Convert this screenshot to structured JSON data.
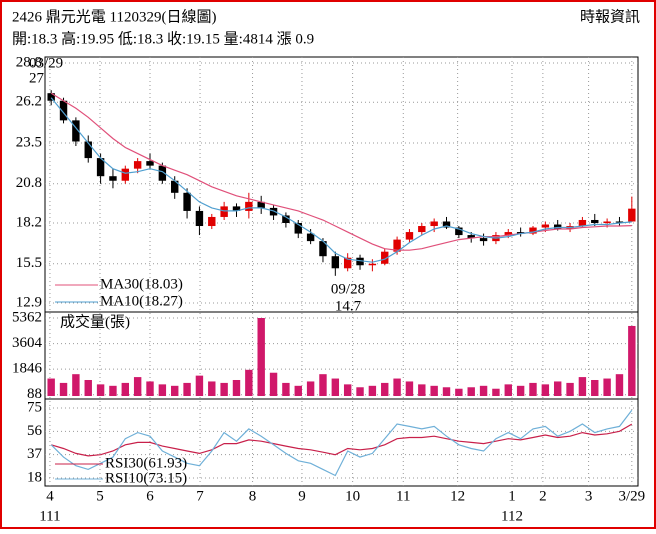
{
  "chart_data": {
    "type": "candlestick",
    "title": "2426  鼎元光電 1120329(日線圖)",
    "source": "時報資訊",
    "quote": "開:18.3 高:19.95 低:18.3 收:19.15 量:4814 漲 0.9",
    "up_color": "#e00000",
    "down_color": "#000000",
    "xlim": [
      -0.5,
      47.5
    ],
    "xticks": [
      {
        "value": -0.1,
        "label": "4"
      },
      {
        "value": 3.95,
        "label": "5"
      },
      {
        "value": 8,
        "label": "6"
      },
      {
        "value": 12.05,
        "label": "7"
      },
      {
        "value": 16.3,
        "label": "8"
      },
      {
        "value": 20.3,
        "label": "9"
      },
      {
        "value": 24.4,
        "label": "10"
      },
      {
        "value": 28.5,
        "label": "11"
      },
      {
        "value": 32.9,
        "label": "12"
      },
      {
        "value": 37.3,
        "label": "1"
      },
      {
        "value": 39.8,
        "label": "2"
      },
      {
        "value": 43.5,
        "label": "3"
      },
      {
        "value": 47,
        "label": "3/29"
      }
    ],
    "year_labels": [
      {
        "value": -0.1,
        "label": "111"
      },
      {
        "value": 37.3,
        "label": "112"
      }
    ],
    "grid": true,
    "ylim": [
      12.9,
      28.8
    ],
    "yticks": [
      28.8,
      26.2,
      23.5,
      20.8,
      18.2,
      15.5,
      12.9
    ],
    "high_note": {
      "date": "03/29",
      "value": 27
    },
    "low_note": {
      "date": "09/28",
      "value": 14.7
    },
    "ohlc": [
      [
        26.8,
        27,
        26,
        26.3
      ],
      [
        26.3,
        26.5,
        24.8,
        25.0
      ],
      [
        25.0,
        25.2,
        23.3,
        23.6
      ],
      [
        23.6,
        24.0,
        22.2,
        22.5
      ],
      [
        22.5,
        22.8,
        20.8,
        21.3
      ],
      [
        21.3,
        21.8,
        20.5,
        21.0
      ],
      [
        21.0,
        22.0,
        20.8,
        21.8
      ],
      [
        21.8,
        22.5,
        21.5,
        22.3
      ],
      [
        22.3,
        22.8,
        21.8,
        22.0
      ],
      [
        22.0,
        22.2,
        20.8,
        21.0
      ],
      [
        21.0,
        21.3,
        19.8,
        20.2
      ],
      [
        20.2,
        20.5,
        18.5,
        19.0
      ],
      [
        19.0,
        19.3,
        17.4,
        18.0
      ],
      [
        18.0,
        18.8,
        17.8,
        18.6
      ],
      [
        18.6,
        19.6,
        18.4,
        19.3
      ],
      [
        19.3,
        19.5,
        18.6,
        19.0
      ],
      [
        19.0,
        20.2,
        18.5,
        19.6
      ],
      [
        19.6,
        20.0,
        18.8,
        19.2
      ],
      [
        19.2,
        19.4,
        18.4,
        18.7
      ],
      [
        18.7,
        18.9,
        17.9,
        18.2
      ],
      [
        18.2,
        18.4,
        17.2,
        17.5
      ],
      [
        17.5,
        17.8,
        16.8,
        17.0
      ],
      [
        17.0,
        17.2,
        15.6,
        16.0
      ],
      [
        16.0,
        16.3,
        14.7,
        15.2
      ],
      [
        15.2,
        16.2,
        15.0,
        15.9
      ],
      [
        15.9,
        16.1,
        15.1,
        15.4
      ],
      [
        15.4,
        15.8,
        15.0,
        15.5
      ],
      [
        15.5,
        16.5,
        15.4,
        16.3
      ],
      [
        16.3,
        17.3,
        16.1,
        17.1
      ],
      [
        17.1,
        17.8,
        16.9,
        17.6
      ],
      [
        17.6,
        18.2,
        17.4,
        18.0
      ],
      [
        18.0,
        18.5,
        17.6,
        18.3
      ],
      [
        18.3,
        18.6,
        17.8,
        17.9
      ],
      [
        17.9,
        18.0,
        17.2,
        17.4
      ],
      [
        17.4,
        17.6,
        16.9,
        17.2
      ],
      [
        17.2,
        17.5,
        16.7,
        17.0
      ],
      [
        17.0,
        17.6,
        16.8,
        17.4
      ],
      [
        17.4,
        17.8,
        17.2,
        17.6
      ],
      [
        17.6,
        17.9,
        17.3,
        17.5
      ],
      [
        17.5,
        18.0,
        17.4,
        17.9
      ],
      [
        17.9,
        18.3,
        17.6,
        18.1
      ],
      [
        18.1,
        18.4,
        17.7,
        17.8
      ],
      [
        17.8,
        18.2,
        17.6,
        18.0
      ],
      [
        18.0,
        18.6,
        17.9,
        18.4
      ],
      [
        18.4,
        18.8,
        18.0,
        18.2
      ],
      [
        18.2,
        18.5,
        17.9,
        18.3
      ],
      [
        18.3,
        18.6,
        18.0,
        18.25
      ],
      [
        18.3,
        19.95,
        18.3,
        19.15
      ]
    ],
    "series": [
      {
        "name": "MA30(18.03)",
        "color": "#e0507a",
        "values": [
          26.8,
          26.3,
          25.8,
          25.2,
          24.5,
          23.8,
          23.2,
          22.8,
          22.4,
          22.0,
          21.7,
          21.4,
          21.0,
          20.6,
          20.3,
          20.0,
          19.8,
          19.6,
          19.4,
          19.2,
          19.0,
          18.7,
          18.4,
          18.0,
          17.6,
          17.2,
          16.8,
          16.5,
          16.4,
          16.4,
          16.5,
          16.7,
          16.9,
          17.1,
          17.2,
          17.3,
          17.3,
          17.4,
          17.5,
          17.6,
          17.7,
          17.8,
          17.8,
          17.9,
          17.95,
          18.0,
          18.0,
          18.03
        ]
      },
      {
        "name": "MA10(18.27)",
        "color": "#4f9fd0",
        "values": [
          26.5,
          25.5,
          24.5,
          23.5,
          22.5,
          21.8,
          21.5,
          21.6,
          21.8,
          21.6,
          21.0,
          20.3,
          19.6,
          19.2,
          19.0,
          19.0,
          19.2,
          19.2,
          19.0,
          18.6,
          18.1,
          17.6,
          17.0,
          16.2,
          15.8,
          15.7,
          15.6,
          15.8,
          16.3,
          16.9,
          17.4,
          17.8,
          18.0,
          17.8,
          17.5,
          17.3,
          17.2,
          17.3,
          17.5,
          17.6,
          17.8,
          17.9,
          17.9,
          18.0,
          18.1,
          18.1,
          18.2,
          18.27
        ]
      }
    ],
    "volume": {
      "title": "成交量(張)",
      "color": "#d0186a",
      "ylim": [
        0,
        5362
      ],
      "yticks": [
        5362,
        3604,
        1846,
        88
      ],
      "values": [
        1200,
        900,
        1500,
        1100,
        800,
        700,
        900,
        1300,
        1000,
        800,
        700,
        900,
        1400,
        1000,
        900,
        1100,
        1800,
        5362,
        1600,
        900,
        700,
        1000,
        1500,
        1200,
        800,
        600,
        700,
        900,
        1200,
        1000,
        800,
        700,
        600,
        500,
        600,
        700,
        500,
        800,
        700,
        900,
        800,
        1000,
        900,
        1300,
        1100,
        1200,
        1500,
        4814
      ]
    },
    "rsi": {
      "ylim": [
        18,
        75
      ],
      "yticks": [
        75,
        56,
        37,
        18
      ],
      "series": [
        {
          "name": "RSI30(61.93)",
          "color": "#c8204a",
          "values": [
            45,
            42,
            38,
            36,
            37,
            40,
            45,
            47,
            47,
            44,
            42,
            40,
            38,
            41,
            46,
            46,
            49,
            48,
            46,
            44,
            42,
            41,
            39,
            37,
            42,
            41,
            42,
            45,
            50,
            51,
            51,
            52,
            50,
            48,
            47,
            46,
            48,
            50,
            49,
            51,
            53,
            51,
            52,
            55,
            53,
            54,
            56,
            61.93
          ]
        },
        {
          "name": "RSI10(73.15)",
          "color": "#6fb0d8",
          "values": [
            45,
            35,
            28,
            25,
            30,
            35,
            50,
            55,
            52,
            40,
            35,
            30,
            28,
            40,
            55,
            48,
            58,
            52,
            45,
            38,
            32,
            30,
            25,
            20,
            40,
            35,
            38,
            50,
            62,
            60,
            58,
            60,
            52,
            45,
            42,
            40,
            50,
            55,
            50,
            58,
            60,
            52,
            56,
            62,
            55,
            58,
            60,
            73.15
          ]
        }
      ]
    }
  }
}
